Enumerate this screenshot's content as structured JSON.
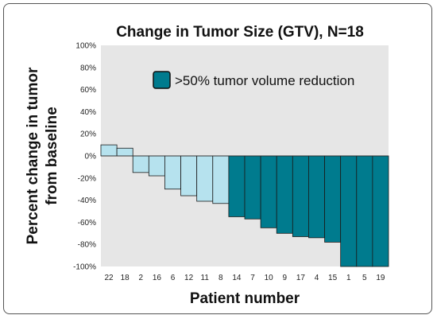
{
  "chart_data": {
    "type": "bar",
    "title": "Change in Tumor Size (GTV), N=18",
    "xlabel": "Patient number",
    "ylabel_lines": [
      "Percent change in tumor",
      "from baseline"
    ],
    "ylim": [
      -100,
      100
    ],
    "yticks": [
      100,
      80,
      60,
      40,
      20,
      0,
      -20,
      -40,
      -60,
      -80,
      -100
    ],
    "ytick_labels": [
      "100%",
      "80%",
      "60%",
      "40%",
      "20%",
      "0%",
      "-20%",
      "-40%",
      "-60%",
      "-80%",
      "-100%"
    ],
    "categories": [
      "22",
      "18",
      "2",
      "16",
      "6",
      "12",
      "11",
      "8",
      "14",
      "7",
      "10",
      "9",
      "17",
      "4",
      "15",
      "1",
      "5",
      "19"
    ],
    "values": [
      10,
      7,
      -15,
      -18,
      -30,
      -36,
      -41,
      -43,
      -55,
      -57,
      -65,
      -70,
      -73,
      -74,
      -78,
      -100,
      -100,
      -100
    ],
    "highlight": [
      false,
      false,
      false,
      false,
      false,
      false,
      false,
      false,
      true,
      true,
      true,
      true,
      true,
      true,
      true,
      true,
      true,
      true
    ],
    "legend": {
      "label": ">50% tumor volume reduction",
      "placement": "top-right"
    },
    "grid": false,
    "colors": {
      "plot_background": "#e6e6e6",
      "bar_light": "#b6e2ee",
      "bar_dark": "#007b8e",
      "bar_stroke": "#1a1a1a",
      "legend_swatch": "#007b8e"
    }
  }
}
